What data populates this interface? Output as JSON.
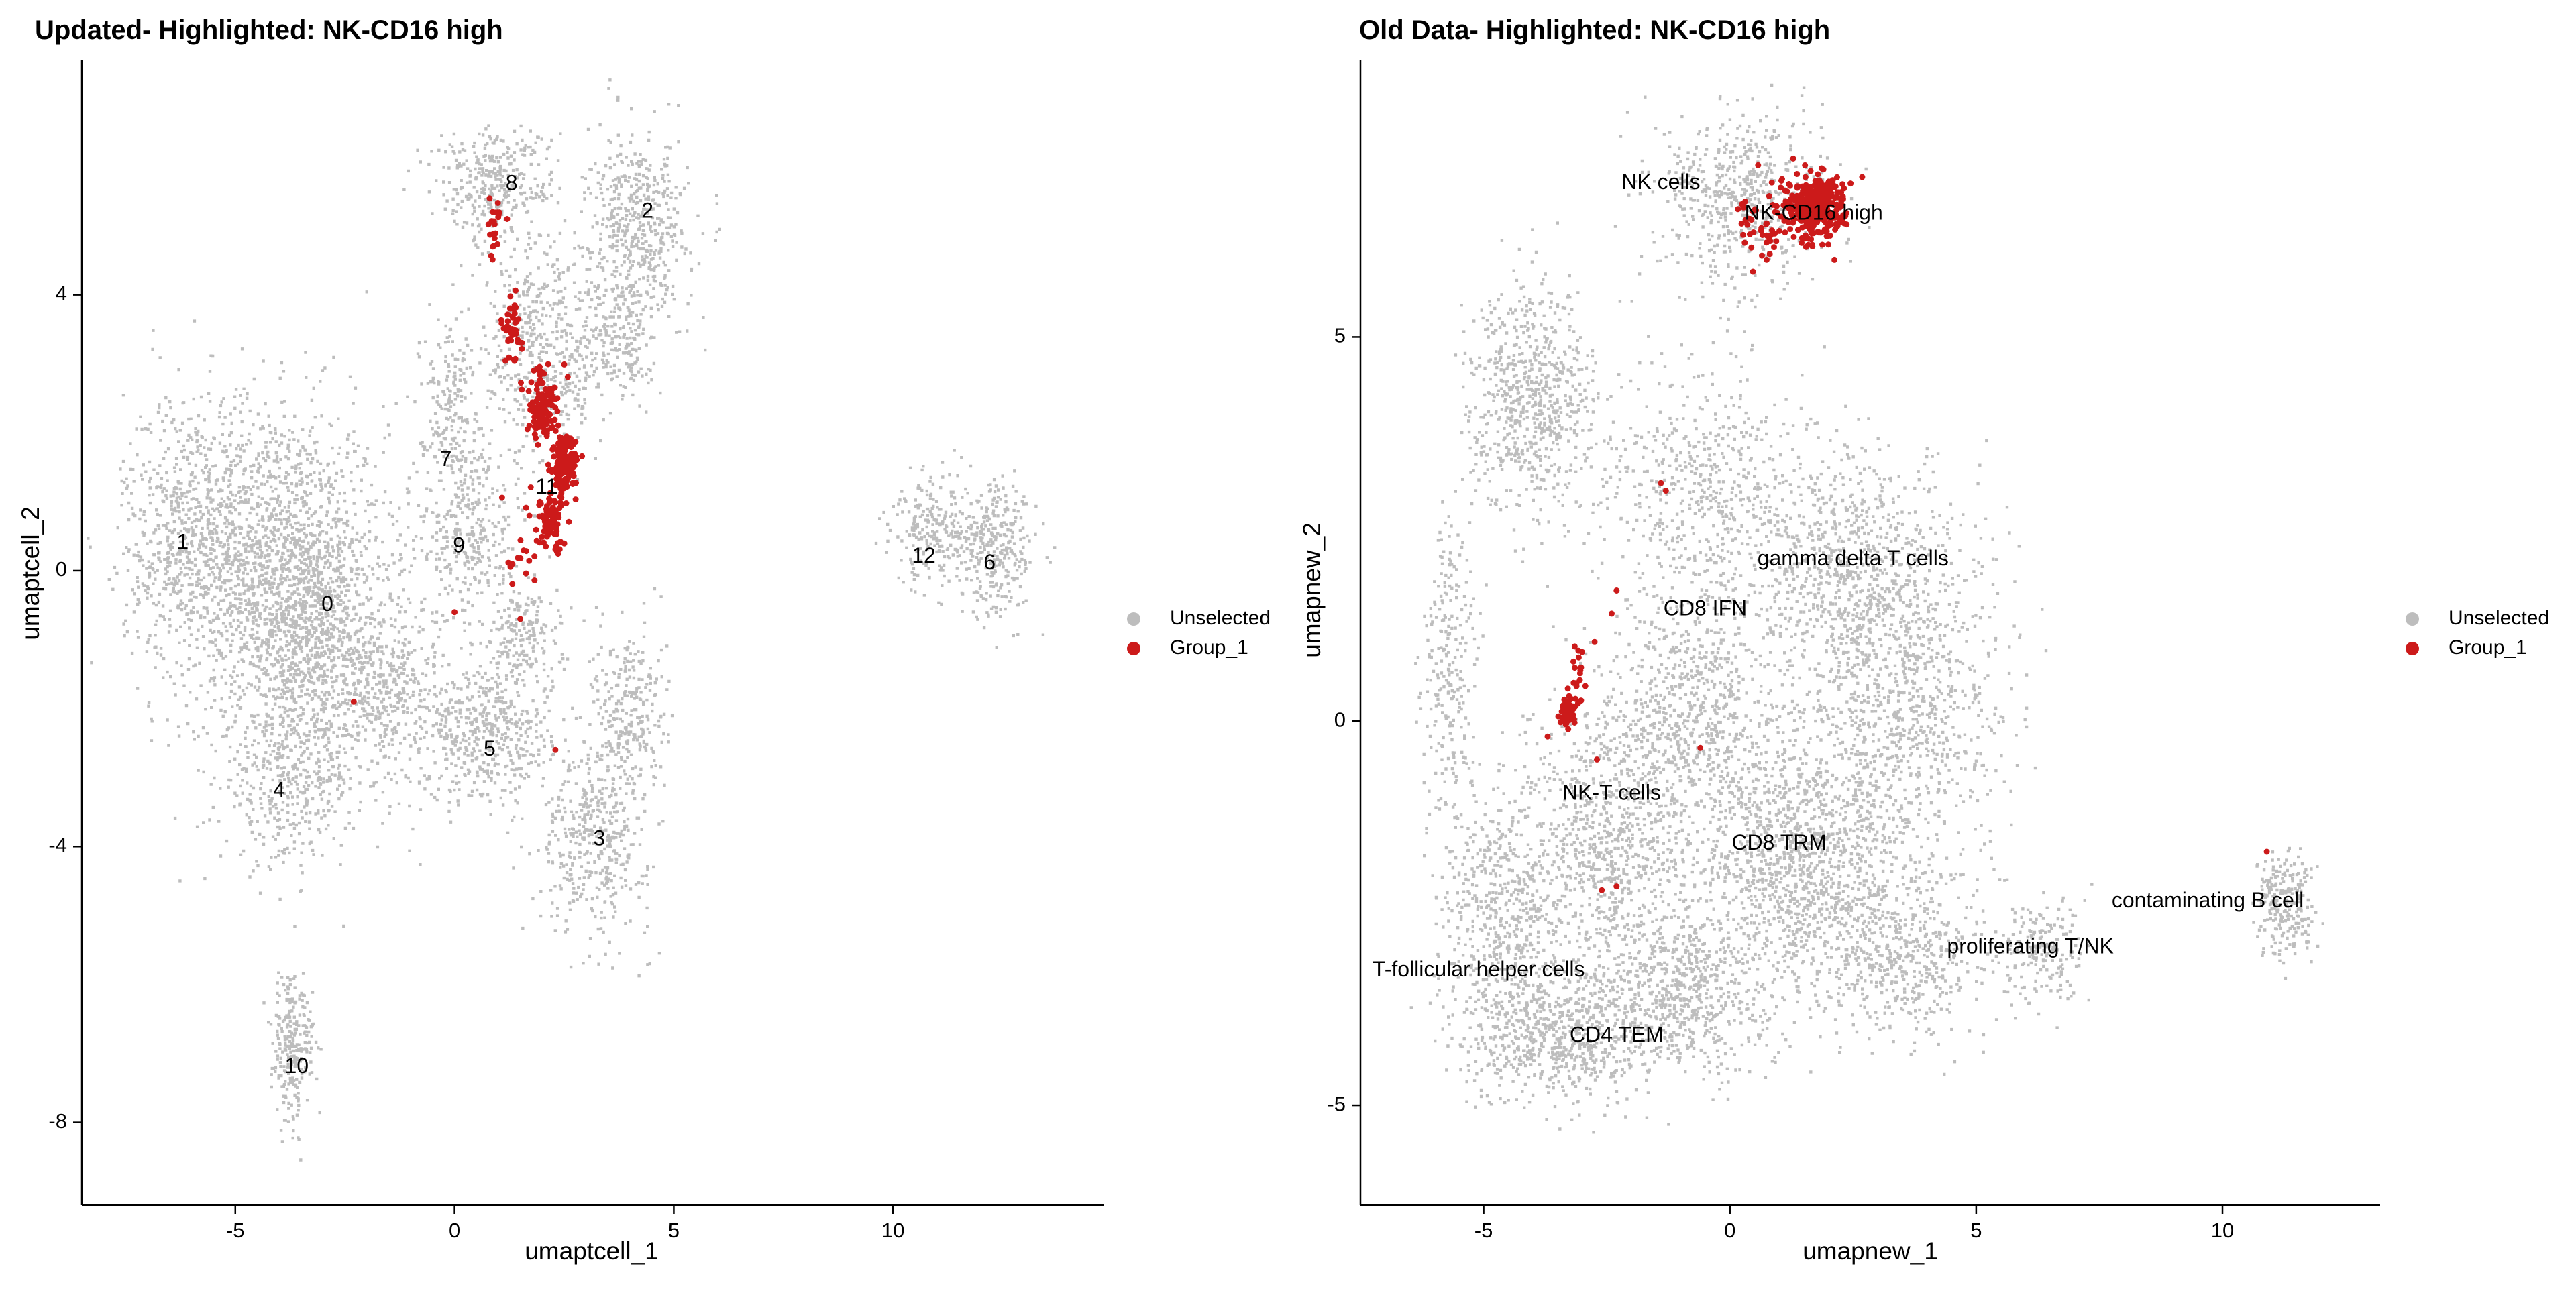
{
  "chart_data": [
    {
      "type": "scatter",
      "title": "Updated- Highlighted: NK-CD16 high",
      "xlabel": "umaptcell_1",
      "ylabel": "umaptcell_2",
      "xlim": [
        -8.5,
        14.8
      ],
      "ylim": [
        -9.2,
        7.4
      ],
      "xticks": [
        -5,
        0,
        5,
        10
      ],
      "yticks": [
        -8,
        -4,
        0,
        4
      ],
      "grid": false,
      "legend_position": "right",
      "legend": [
        {
          "label": "Unselected",
          "color": "#bdbdbd"
        },
        {
          "label": "Group_1",
          "color": "#cc1a1a"
        }
      ],
      "cluster_labels": [
        {
          "text": "8",
          "x": 1.3,
          "y": 5.6
        },
        {
          "text": "2",
          "x": 4.4,
          "y": 5.2
        },
        {
          "text": "7",
          "x": -0.2,
          "y": 1.6
        },
        {
          "text": "11",
          "x": 2.1,
          "y": 1.2
        },
        {
          "text": "1",
          "x": -6.2,
          "y": 0.4
        },
        {
          "text": "9",
          "x": 0.1,
          "y": 0.35
        },
        {
          "text": "0",
          "x": -2.9,
          "y": -0.5
        },
        {
          "text": "12",
          "x": 10.7,
          "y": 0.2
        },
        {
          "text": "6",
          "x": 12.2,
          "y": 0.1
        },
        {
          "text": "5",
          "x": 0.8,
          "y": -2.6
        },
        {
          "text": "4",
          "x": -4.0,
          "y": -3.2
        },
        {
          "text": "3",
          "x": 3.3,
          "y": -3.9
        },
        {
          "text": "10",
          "x": -3.6,
          "y": -7.2
        }
      ],
      "unselected_regions": [
        {
          "cx": -4.2,
          "cy": 0.2,
          "sx": 1.9,
          "sy": 1.6,
          "n": 1500
        },
        {
          "cx": -6.0,
          "cy": 0.6,
          "sx": 1.1,
          "sy": 1.5,
          "n": 500
        },
        {
          "cx": -3.2,
          "cy": -0.9,
          "sx": 1.3,
          "sy": 1.2,
          "n": 800
        },
        {
          "cx": -3.8,
          "cy": -3.0,
          "sx": 1.1,
          "sy": 0.9,
          "n": 450
        },
        {
          "cx": -1.5,
          "cy": -1.8,
          "sx": 1.0,
          "sy": 1.0,
          "n": 450
        },
        {
          "cx": 0.8,
          "cy": -2.4,
          "sx": 1.0,
          "sy": 0.7,
          "n": 450
        },
        {
          "cx": 3.2,
          "cy": -3.8,
          "sx": 0.9,
          "sy": 1.0,
          "n": 450
        },
        {
          "cx": 4.0,
          "cy": -2.0,
          "sx": 0.6,
          "sy": 0.9,
          "n": 250
        },
        {
          "cx": 0.3,
          "cy": 0.6,
          "sx": 0.8,
          "sy": 1.0,
          "n": 350
        },
        {
          "cx": -0.1,
          "cy": 2.5,
          "sx": 0.5,
          "sy": 0.8,
          "n": 200
        },
        {
          "cx": 0.9,
          "cy": 5.6,
          "sx": 1.0,
          "sy": 0.6,
          "n": 350
        },
        {
          "cx": 2.0,
          "cy": 3.2,
          "sx": 0.9,
          "sy": 1.2,
          "n": 450
        },
        {
          "cx": 4.2,
          "cy": 5.0,
          "sx": 0.8,
          "sy": 0.9,
          "n": 500
        },
        {
          "cx": 3.7,
          "cy": 3.4,
          "sx": 0.6,
          "sy": 0.7,
          "n": 250
        },
        {
          "cx": 1.6,
          "cy": -0.9,
          "sx": 0.6,
          "sy": 0.6,
          "n": 200
        },
        {
          "cx": 11.0,
          "cy": 0.6,
          "sx": 0.7,
          "sy": 0.6,
          "n": 250
        },
        {
          "cx": 12.4,
          "cy": 0.3,
          "sx": 0.6,
          "sy": 0.7,
          "n": 300
        },
        {
          "cx": -3.7,
          "cy": -6.9,
          "sx": 0.35,
          "sy": 0.8,
          "n": 250
        }
      ],
      "highlighted_regions": [
        {
          "cx": 0.9,
          "cy": 4.9,
          "sx": 0.12,
          "sy": 0.35,
          "n": 20
        },
        {
          "cx": 1.3,
          "cy": 3.5,
          "sx": 0.2,
          "sy": 0.4,
          "n": 40
        },
        {
          "cx": 2.0,
          "cy": 2.4,
          "sx": 0.3,
          "sy": 0.4,
          "n": 120
        },
        {
          "cx": 2.5,
          "cy": 1.5,
          "sx": 0.22,
          "sy": 0.35,
          "n": 160
        },
        {
          "cx": 2.2,
          "cy": 0.7,
          "sx": 0.3,
          "sy": 0.35,
          "n": 80
        },
        {
          "cx": 1.6,
          "cy": 0.2,
          "sx": 0.4,
          "sy": 0.45,
          "n": 15
        }
      ],
      "highlighted_points": [
        [
          0.8,
          5.4
        ],
        [
          1.2,
          5.1
        ],
        [
          0.0,
          -0.6
        ],
        [
          -2.3,
          -1.9
        ],
        [
          2.3,
          -2.6
        ],
        [
          1.5,
          -0.7
        ]
      ]
    },
    {
      "type": "scatter",
      "title": "Old Data- Highlighted: NK-CD16 high",
      "xlabel": "umapnew_1",
      "ylabel": "umapnew_2",
      "xlim": [
        -7.5,
        13.2
      ],
      "ylim": [
        -6.3,
        8.6
      ],
      "xticks": [
        -5,
        0,
        5,
        10
      ],
      "yticks": [
        -5,
        0,
        5
      ],
      "grid": false,
      "legend_position": "right",
      "legend": [
        {
          "label": "Unselected",
          "color": "#bdbdbd"
        },
        {
          "label": "Group_1",
          "color": "#cc1a1a"
        }
      ],
      "cluster_labels": [
        {
          "text": "NK cells",
          "x": -1.4,
          "y": 7.0
        },
        {
          "text": "NK-CD16 high",
          "x": 1.7,
          "y": 6.6
        },
        {
          "text": "gamma delta T cells",
          "x": 2.5,
          "y": 2.1
        },
        {
          "text": "CD8 IFN",
          "x": -0.5,
          "y": 1.45
        },
        {
          "text": "NK-T cells",
          "x": -2.4,
          "y": -0.95
        },
        {
          "text": "CD8 TRM",
          "x": 1.0,
          "y": -1.6
        },
        {
          "text": "contaminating  B cell",
          "x": 9.7,
          "y": -2.35
        },
        {
          "text": "proliferating T/NK",
          "x": 6.1,
          "y": -2.95
        },
        {
          "text": "T-follicular helper cells",
          "x": -5.1,
          "y": -3.25
        },
        {
          "text": "CD4 TEM",
          "x": -2.3,
          "y": -4.1
        }
      ],
      "unselected_regions": [
        {
          "cx": -4.0,
          "cy": 4.2,
          "sx": 0.9,
          "sy": 1.0,
          "n": 700
        },
        {
          "cx": 0.3,
          "cy": 6.8,
          "sx": 1.2,
          "sy": 0.8,
          "n": 600
        },
        {
          "cx": -0.5,
          "cy": 3.0,
          "sx": 1.6,
          "sy": 1.2,
          "n": 600
        },
        {
          "cx": 2.5,
          "cy": 2.0,
          "sx": 1.6,
          "sy": 1.0,
          "n": 800
        },
        {
          "cx": 3.5,
          "cy": 0.2,
          "sx": 1.5,
          "sy": 1.3,
          "n": 900
        },
        {
          "cx": -0.8,
          "cy": 0.0,
          "sx": 1.2,
          "sy": 1.2,
          "n": 700
        },
        {
          "cx": 1.5,
          "cy": -1.8,
          "sx": 1.5,
          "sy": 1.2,
          "n": 1300
        },
        {
          "cx": -2.5,
          "cy": -1.5,
          "sx": 1.2,
          "sy": 1.2,
          "n": 800
        },
        {
          "cx": -4.5,
          "cy": -2.5,
          "sx": 1.0,
          "sy": 1.2,
          "n": 600
        },
        {
          "cx": -3.5,
          "cy": -4.1,
          "sx": 1.4,
          "sy": 0.6,
          "n": 700
        },
        {
          "cx": -1.0,
          "cy": -3.5,
          "sx": 1.3,
          "sy": 0.8,
          "n": 700
        },
        {
          "cx": 3.5,
          "cy": -3.0,
          "sx": 1.2,
          "sy": 0.8,
          "n": 500
        },
        {
          "cx": 6.3,
          "cy": -3.0,
          "sx": 0.6,
          "sy": 0.5,
          "n": 200
        },
        {
          "cx": 11.3,
          "cy": -2.4,
          "sx": 0.45,
          "sy": 0.5,
          "n": 250
        },
        {
          "cx": -5.7,
          "cy": 0.5,
          "sx": 0.4,
          "sy": 1.5,
          "n": 250
        }
      ],
      "highlighted_regions": [
        {
          "cx": 1.7,
          "cy": 6.7,
          "sx": 0.5,
          "sy": 0.35,
          "n": 350
        },
        {
          "cx": 0.6,
          "cy": 6.3,
          "sx": 0.4,
          "sy": 0.5,
          "n": 40
        },
        {
          "cx": -3.3,
          "cy": 0.1,
          "sx": 0.12,
          "sy": 0.15,
          "n": 60
        },
        {
          "cx": -3.0,
          "cy": 0.6,
          "sx": 0.2,
          "sy": 0.4,
          "n": 20
        }
      ],
      "highlighted_points": [
        [
          -1.4,
          3.1
        ],
        [
          -1.3,
          3.0
        ],
        [
          -2.3,
          1.7
        ],
        [
          -2.4,
          1.4
        ],
        [
          -2.7,
          -0.5
        ],
        [
          -0.6,
          -0.35
        ],
        [
          -2.6,
          -2.2
        ],
        [
          -2.3,
          -2.15
        ],
        [
          10.9,
          -1.7
        ],
        [
          -3.7,
          -0.2
        ]
      ]
    }
  ]
}
